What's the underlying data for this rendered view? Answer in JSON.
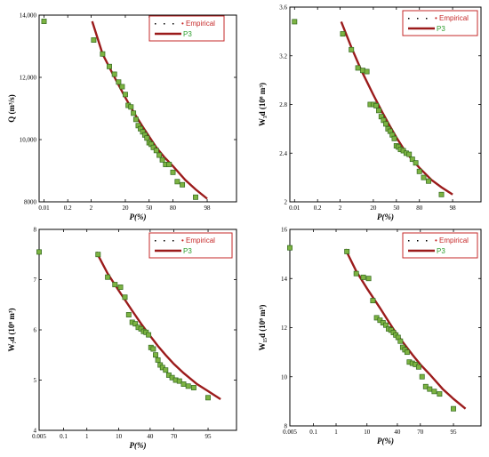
{
  "colors": {
    "curve": "#9b1b1b",
    "point_fill": "#7cb342",
    "point_stroke": "#33691e",
    "empirical_text": "#c62828",
    "p3_text": "#2e9e2e"
  },
  "chart_data": [
    {
      "type": "scatter",
      "ylabel": "Q (m³/s)",
      "xlabel": "P(%)",
      "legend": [
        "Empirical",
        "P3"
      ],
      "legend_position": "top-right",
      "xlim": [
        0.005,
        99.9
      ],
      "ylim": [
        8000,
        14000
      ],
      "xticks": [
        0.01,
        0.2,
        2,
        20,
        50,
        80,
        98
      ],
      "yticks": [
        8000,
        10000,
        12000,
        14000
      ],
      "ytick_labels": [
        "8000",
        "10,000",
        "12,000",
        "14,000"
      ],
      "empirical_x": [
        0.01,
        2.5,
        5,
        8,
        11,
        14,
        17,
        20,
        23,
        26,
        29,
        32,
        35,
        38,
        41,
        44,
        47,
        50,
        53,
        56,
        60,
        64,
        68,
        72,
        76,
        80,
        84,
        88,
        95
      ],
      "empirical_y": [
        13800,
        13200,
        12750,
        12350,
        12100,
        11850,
        11700,
        11450,
        11100,
        11050,
        10850,
        10650,
        10450,
        10350,
        10250,
        10150,
        10050,
        9900,
        9850,
        9750,
        9650,
        9500,
        9350,
        9200,
        9200,
        8950,
        8650,
        8550,
        8150
      ],
      "fit_x": [
        2.2,
        5,
        10,
        20,
        30,
        40,
        50,
        60,
        70,
        80,
        90,
        95,
        98
      ],
      "fit_y": [
        13800,
        12750,
        12100,
        11350,
        10850,
        10450,
        10100,
        9750,
        9450,
        9150,
        8700,
        8400,
        8100
      ]
    },
    {
      "type": "scatter",
      "ylabel": "W₃d (10⁸ m³)",
      "xlabel": "P(%)",
      "legend": [
        "Empirical",
        "P3"
      ],
      "legend_position": "top-right",
      "xlim": [
        0.005,
        99.9
      ],
      "ylim": [
        2,
        3.6
      ],
      "xticks": [
        0.01,
        0.2,
        2,
        20,
        50,
        80,
        98
      ],
      "yticks": [
        2,
        2.4,
        2.8,
        3.2,
        3.6
      ],
      "ytick_labels": [
        "2",
        "2.4",
        "2.8",
        "3.2",
        "3.6"
      ],
      "empirical_x": [
        0.01,
        2.5,
        5,
        8,
        11,
        14,
        17,
        20,
        23,
        26,
        29,
        32,
        35,
        38,
        41,
        44,
        47,
        50,
        53,
        56,
        60,
        64,
        68,
        72,
        76,
        80,
        84,
        88,
        95
      ],
      "empirical_y": [
        3.48,
        3.38,
        3.25,
        3.1,
        3.08,
        3.07,
        2.8,
        2.8,
        2.79,
        2.75,
        2.7,
        2.67,
        2.64,
        2.6,
        2.58,
        2.55,
        2.52,
        2.46,
        2.45,
        2.43,
        2.42,
        2.4,
        2.39,
        2.35,
        2.32,
        2.25,
        2.2,
        2.17,
        2.06
      ],
      "fit_x": [
        2.2,
        5,
        10,
        20,
        30,
        40,
        50,
        60,
        70,
        80,
        90,
        95,
        98
      ],
      "fit_y": [
        3.48,
        3.27,
        3.08,
        2.88,
        2.74,
        2.63,
        2.53,
        2.44,
        2.36,
        2.28,
        2.18,
        2.12,
        2.06
      ]
    },
    {
      "type": "scatter",
      "ylabel": "W₇d (10⁸ m³)",
      "xlabel": "P(%)",
      "legend": [
        "Empirical",
        "P3"
      ],
      "legend_position": "top-right",
      "xlim": [
        0.005,
        99.5
      ],
      "ylim": [
        4,
        8
      ],
      "xticks": [
        0.005,
        0.1,
        1,
        10,
        40,
        70,
        95
      ],
      "yticks": [
        4,
        5,
        6,
        7,
        8
      ],
      "ytick_labels": [
        "4",
        "5",
        "6",
        "7",
        "8"
      ],
      "empirical_x": [
        0.005,
        2.5,
        5,
        8,
        11,
        14,
        17,
        20,
        23,
        26,
        29,
        32,
        35,
        38,
        41,
        44,
        47,
        50,
        53,
        56,
        60,
        64,
        68,
        72,
        76,
        80,
        84,
        88,
        95
      ],
      "empirical_y": [
        7.55,
        7.5,
        7.05,
        6.9,
        6.85,
        6.65,
        6.3,
        6.15,
        6.12,
        6.05,
        6.02,
        5.97,
        5.95,
        5.9,
        5.65,
        5.62,
        5.5,
        5.4,
        5.3,
        5.25,
        5.2,
        5.1,
        5.05,
        5.0,
        4.98,
        4.92,
        4.88,
        4.85,
        4.65
      ],
      "fit_x": [
        2.2,
        5,
        10,
        20,
        30,
        40,
        50,
        60,
        70,
        80,
        90,
        95,
        98
      ],
      "fit_y": [
        7.55,
        7.12,
        6.78,
        6.38,
        6.1,
        5.88,
        5.68,
        5.5,
        5.32,
        5.14,
        4.92,
        4.78,
        4.62
      ]
    },
    {
      "type": "scatter",
      "ylabel": "W₁₅d (10⁸ m³)",
      "xlabel": "P(%)",
      "legend": [
        "Empirical",
        "P3"
      ],
      "legend_position": "top-right",
      "xlim": [
        0.005,
        99.5
      ],
      "ylim": [
        8,
        16
      ],
      "xticks": [
        0.005,
        0.1,
        1,
        10,
        40,
        70,
        95
      ],
      "yticks": [
        8,
        10,
        12,
        14,
        16
      ],
      "ytick_labels": [
        "8",
        "10",
        "12",
        "14",
        "16"
      ],
      "empirical_x": [
        0.005,
        2.5,
        5,
        8,
        11,
        14,
        17,
        20,
        23,
        26,
        29,
        32,
        35,
        38,
        41,
        44,
        47,
        50,
        53,
        56,
        60,
        64,
        68,
        72,
        76,
        80,
        84,
        88,
        95
      ],
      "empirical_y": [
        15.25,
        15.1,
        14.2,
        14.05,
        14.0,
        13.1,
        12.4,
        12.3,
        12.2,
        12.1,
        11.95,
        11.9,
        11.8,
        11.7,
        11.6,
        11.45,
        11.2,
        11.1,
        11.0,
        10.6,
        10.55,
        10.5,
        10.4,
        10.0,
        9.6,
        9.5,
        9.4,
        9.3,
        8.7
      ],
      "fit_x": [
        2.2,
        5,
        10,
        20,
        30,
        40,
        50,
        60,
        70,
        80,
        90,
        95,
        98
      ],
      "fit_y": [
        15.2,
        14.3,
        13.6,
        12.8,
        12.2,
        11.7,
        11.3,
        10.9,
        10.5,
        10.1,
        9.5,
        9.1,
        8.7
      ]
    }
  ]
}
